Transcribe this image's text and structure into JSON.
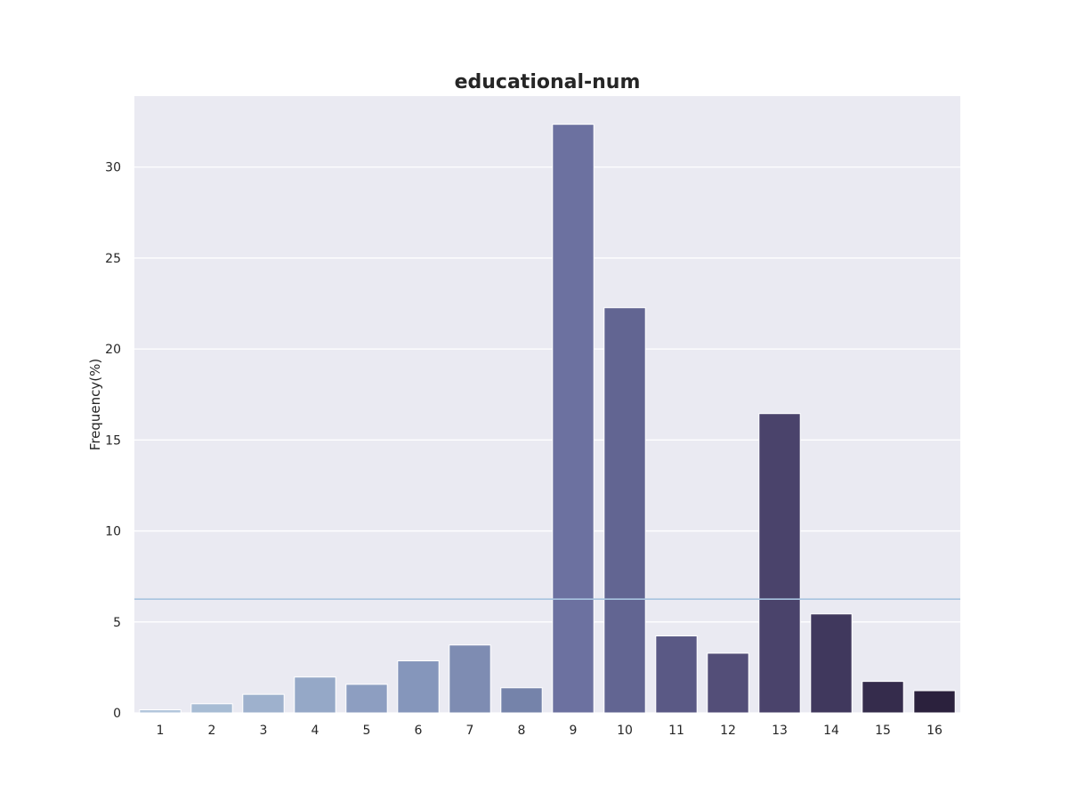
{
  "chart_data": {
    "type": "bar",
    "title": "educational-num",
    "xlabel": "",
    "ylabel": "Frequency(%)",
    "categories": [
      "1",
      "2",
      "3",
      "4",
      "5",
      "6",
      "7",
      "8",
      "9",
      "10",
      "11",
      "12",
      "13",
      "14",
      "15",
      "16"
    ],
    "values": [
      0.17,
      0.5,
      1.02,
      1.97,
      1.57,
      2.86,
      3.73,
      1.38,
      32.35,
      22.27,
      4.23,
      3.28,
      16.45,
      5.44,
      1.73,
      1.22
    ],
    "ylim": [
      0,
      33.9
    ],
    "yticks": [
      0,
      5,
      10,
      15,
      20,
      25,
      30
    ],
    "reference_line": {
      "y": 6.25,
      "color": "#a8c4e0"
    },
    "bar_colors": [
      "#b2c6dc",
      "#a7bcd4",
      "#9eb1cd",
      "#95a8c7",
      "#8d9ec1",
      "#8596bb",
      "#7e8cb2",
      "#7583aa",
      "#6c71a0",
      "#626592",
      "#5a5985",
      "#534e78",
      "#4a436b",
      "#40385d",
      "#352c4c",
      "#2b213d"
    ],
    "background": "#eaeaf2",
    "grid": true
  }
}
